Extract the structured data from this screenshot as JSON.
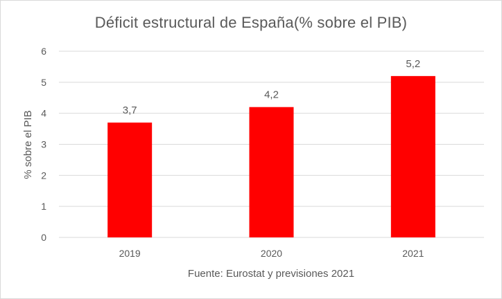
{
  "chart_data": {
    "type": "bar",
    "title": "Déficit estructural de España(% sobre el PIB)",
    "categories": [
      "2019",
      "2020",
      "2021"
    ],
    "values": [
      3.7,
      4.2,
      5.2
    ],
    "data_labels": [
      "3,7",
      "4,2",
      "5,2"
    ],
    "xlabel": "Fuente: Eurostat y previsiones 2021",
    "ylabel": "% sobre el PIB",
    "ylim": [
      0,
      6
    ],
    "yticks": [
      "0",
      "1",
      "2",
      "3",
      "4",
      "5",
      "6"
    ],
    "grid": true,
    "legend": "none",
    "bar_color": "#ff0000",
    "grid_color": "#d9d9d9",
    "text_color": "#595959"
  }
}
